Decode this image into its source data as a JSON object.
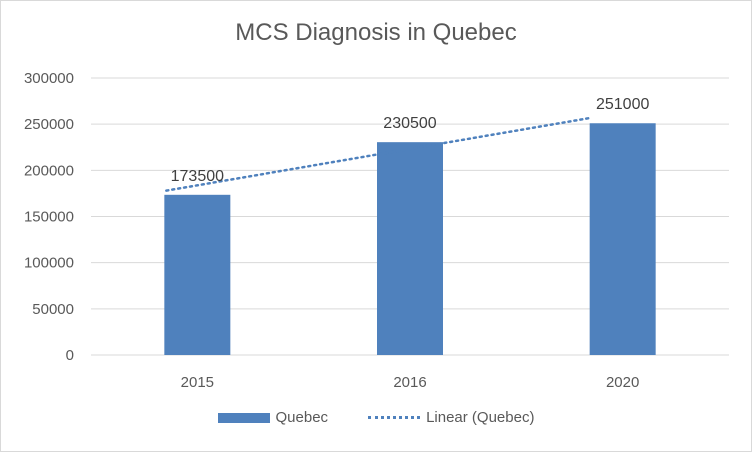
{
  "chart_data": {
    "type": "bar",
    "title": "MCS Diagnosis in Quebec",
    "categories": [
      "2015",
      "2016",
      "2020"
    ],
    "series": [
      {
        "name": "Quebec",
        "values": [
          173500,
          230500,
          251000
        ],
        "color": "#4f81bd"
      }
    ],
    "trendline": {
      "name": "Linear (Quebec)",
      "type": "linear",
      "style": "dotted",
      "color": "#4f81bd",
      "start": 178000,
      "end": 257000
    },
    "data_labels": [
      "173500",
      "230500",
      "251000"
    ],
    "y_ticks": [
      "0",
      "50000",
      "100000",
      "150000",
      "200000",
      "250000",
      "300000"
    ],
    "ylim": [
      0,
      300000
    ],
    "xlabel": "",
    "ylabel": "",
    "grid": true,
    "legend_position": "bottom",
    "legend": [
      "Quebec",
      "Linear (Quebec)"
    ]
  }
}
